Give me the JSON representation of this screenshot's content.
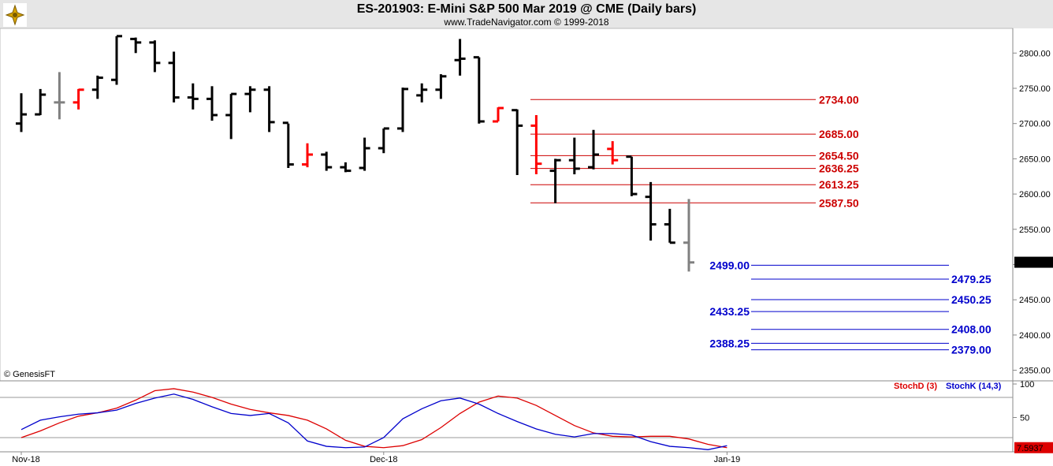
{
  "header": {
    "title": "ES-201903:  E-Mini S&P 500 Mar 2019 @ CME  (Daily bars)",
    "subtitle": "www.TradeNavigator.com © 1999-2018",
    "copyright": "© GenesisFT"
  },
  "colors": {
    "up_bar": "#000000",
    "down_bar_red": "#ff0000",
    "neutral_bar": "#808080",
    "green_tick": "#00cc00",
    "resistance": "#cc0000",
    "support": "#0000cc",
    "stoch_d": "#dd0000",
    "stoch_k": "#0000cc"
  },
  "chart_data": [
    {
      "type": "ohlc",
      "ylim": [
        2335,
        2835
      ],
      "y_ticks": [
        "2800.00",
        "2750.00",
        "2700.00",
        "2650.00",
        "2600.00",
        "2550.00",
        "2500.00",
        "2450.00",
        "2400.00",
        "2350.00"
      ],
      "x_ticks": [
        {
          "label": "Nov-18",
          "index": 0
        },
        {
          "label": "Dec-18",
          "index": 19
        },
        {
          "label": "Jan-19",
          "index": 37
        }
      ],
      "last_price": "2503.25",
      "bars": [
        {
          "o": 2700,
          "h": 2743,
          "l": 2688,
          "c": 2713,
          "color": "black"
        },
        {
          "o": 2713,
          "h": 2749,
          "l": 2712,
          "c": 2741,
          "color": "black"
        },
        {
          "o": 2730,
          "h": 2773,
          "l": 2706,
          "c": 2730,
          "color": "gray"
        },
        {
          "o": 2730,
          "h": 2749,
          "l": 2720,
          "c": 2748,
          "color": "red"
        },
        {
          "o": 2748,
          "h": 2768,
          "l": 2735,
          "c": 2765,
          "color": "black"
        },
        {
          "o": 2762,
          "h": 2824,
          "l": 2755,
          "c": 2824,
          "color": "black"
        },
        {
          "o": 2820,
          "h": 2822,
          "l": 2800,
          "c": 2815,
          "color": "black"
        },
        {
          "o": 2815,
          "h": 2818,
          "l": 2773,
          "c": 2786,
          "color": "black"
        },
        {
          "o": 2786,
          "h": 2802,
          "l": 2730,
          "c": 2737,
          "color": "black"
        },
        {
          "o": 2737,
          "h": 2757,
          "l": 2720,
          "c": 2735,
          "color": "black"
        },
        {
          "o": 2735,
          "h": 2753,
          "l": 2704,
          "c": 2712,
          "color": "black"
        },
        {
          "o": 2712,
          "h": 2742,
          "l": 2678,
          "c": 2742,
          "color": "black"
        },
        {
          "o": 2742,
          "h": 2753,
          "l": 2716,
          "c": 2748,
          "color": "black"
        },
        {
          "o": 2748,
          "h": 2753,
          "l": 2688,
          "c": 2702,
          "color": "black"
        },
        {
          "o": 2701,
          "h": 2700,
          "l": 2637,
          "c": 2642,
          "color": "black"
        },
        {
          "o": 2642,
          "h": 2672,
          "l": 2638,
          "c": 2656,
          "color": "red"
        },
        {
          "o": 2656,
          "h": 2660,
          "l": 2633,
          "c": 2638,
          "color": "black"
        },
        {
          "o": 2638,
          "h": 2645,
          "l": 2631,
          "c": 2633,
          "color": "black"
        },
        {
          "o": 2637,
          "h": 2680,
          "l": 2633,
          "c": 2665,
          "color": "black"
        },
        {
          "o": 2665,
          "h": 2693,
          "l": 2658,
          "c": 2693,
          "color": "black"
        },
        {
          "o": 2693,
          "h": 2751,
          "l": 2688,
          "c": 2749,
          "color": "black"
        },
        {
          "o": 2740,
          "h": 2757,
          "l": 2730,
          "c": 2748,
          "color": "black"
        },
        {
          "o": 2748,
          "h": 2770,
          "l": 2735,
          "c": 2767,
          "color": "black"
        },
        {
          "o": 2790,
          "h": 2820,
          "l": 2768,
          "c": 2792,
          "color": "black"
        },
        {
          "o": 2794,
          "h": 2794,
          "l": 2700,
          "c": 2703,
          "color": "black"
        },
        {
          "o": 2703,
          "h": 2723,
          "l": 2703,
          "c": 2722,
          "color": "red"
        },
        {
          "o": 2719,
          "h": 2720,
          "l": 2627,
          "c": 2697,
          "color": "black"
        },
        {
          "o": 2697,
          "h": 2712,
          "l": 2628,
          "c": 2643,
          "color": "red"
        },
        {
          "o": 2633,
          "h": 2650,
          "l": 2587,
          "c": 2648,
          "color": "black"
        },
        {
          "o": 2648,
          "h": 2680,
          "l": 2628,
          "c": 2636,
          "color": "black"
        },
        {
          "o": 2638,
          "h": 2691,
          "l": 2635,
          "c": 2656,
          "color": "black"
        },
        {
          "o": 2664,
          "h": 2675,
          "l": 2642,
          "c": 2648,
          "color": "red"
        },
        {
          "o": 2653,
          "h": 2653,
          "l": 2597,
          "c": 2600,
          "color": "black"
        },
        {
          "o": 2596,
          "h": 2617,
          "l": 2534,
          "c": 2557,
          "color": "black"
        },
        {
          "o": 2557,
          "h": 2579,
          "l": 2531,
          "c": 2531,
          "color": "black"
        },
        {
          "o": 2531,
          "h": 2593,
          "l": 2490,
          "c": 2503,
          "color": "gray"
        }
      ],
      "resistance_levels": [
        "2734.00",
        "2685.00",
        "2654.50",
        "2636.25",
        "2613.25",
        "2587.50"
      ],
      "support_levels": [
        {
          "value": "2499.00",
          "side": "left"
        },
        {
          "value": "2479.25",
          "side": "right"
        },
        {
          "value": "2450.25",
          "side": "right"
        },
        {
          "value": "2433.25",
          "side": "left"
        },
        {
          "value": "2408.00",
          "side": "right"
        },
        {
          "value": "2388.25",
          "side": "left"
        },
        {
          "value": "2379.00",
          "side": "right"
        }
      ]
    },
    {
      "type": "line",
      "ylim": [
        0,
        100
      ],
      "y_ticks": [
        "100",
        "50"
      ],
      "last_value": "7.5937",
      "reference_lines": [
        80,
        20
      ],
      "series": [
        {
          "name": "StochD (3)",
          "color": "#dd0000",
          "values": [
            20,
            30,
            42,
            52,
            57,
            64,
            76,
            90,
            93,
            88,
            80,
            70,
            62,
            57,
            53,
            46,
            33,
            16,
            7,
            5,
            8,
            17,
            35,
            56,
            73,
            82,
            79,
            68,
            53,
            38,
            27,
            22,
            21,
            22,
            22,
            18,
            10,
            5
          ]
        },
        {
          "name": "StochK (14,3)",
          "color": "#0000cc",
          "values": [
            32,
            46,
            51,
            55,
            57,
            61,
            71,
            79,
            85,
            77,
            66,
            56,
            53,
            56,
            42,
            15,
            7,
            5,
            6,
            20,
            48,
            63,
            75,
            79,
            70,
            56,
            44,
            33,
            25,
            21,
            26,
            26,
            24,
            14,
            7,
            5,
            2,
            8
          ]
        }
      ]
    }
  ]
}
